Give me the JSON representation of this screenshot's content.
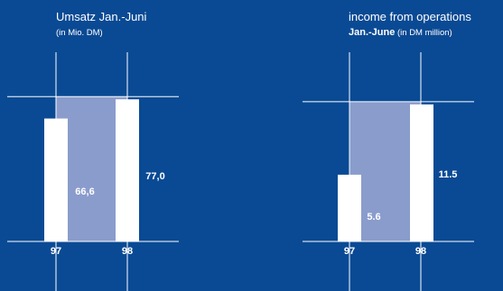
{
  "colors": {
    "background": "#0a4a94",
    "bar": "#ffffff",
    "band": "#8a9ccc",
    "band_label": "#ffffff",
    "outside_label": "#ffffff",
    "year_label": "#ffffff"
  },
  "chart_data": [
    {
      "type": "bar",
      "title": "Umsatz Jan.-Juni",
      "subtitle": "(in Mio. DM)",
      "categories": [
        "97",
        "98"
      ],
      "values": [
        66.6,
        77.0
      ],
      "value_labels": [
        "66,6",
        "77,0"
      ],
      "ylim": [
        0,
        82
      ]
    },
    {
      "type": "bar",
      "title": "income from operations",
      "subtitle_bold": "Jan.-June",
      "subtitle": "(in DM million)",
      "categories": [
        "97",
        "98"
      ],
      "values": [
        5.6,
        11.5
      ],
      "value_labels": [
        "5.6",
        "11.5"
      ],
      "ylim": [
        0,
        12.7
      ]
    }
  ]
}
